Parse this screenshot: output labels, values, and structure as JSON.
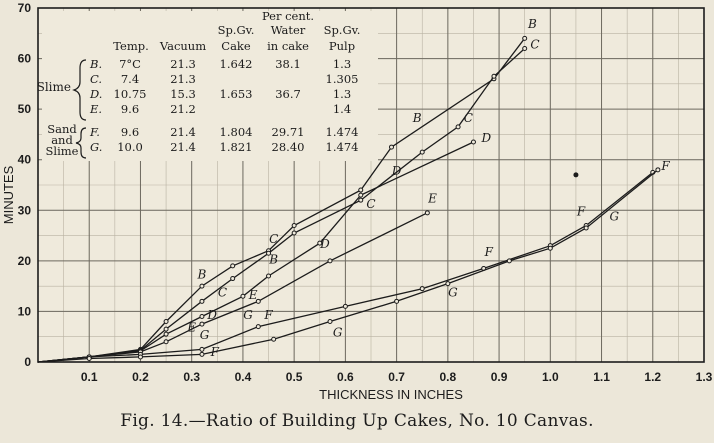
{
  "chart_data": {
    "type": "line",
    "xlabel": "THICKNESS IN INCHES",
    "ylabel": "MINUTES",
    "xlim": [
      0,
      1.3
    ],
    "ylim": [
      0,
      70
    ],
    "x_ticks": [
      "0.1",
      "0.2",
      "0.3",
      "0.4",
      "0.5",
      "0.6",
      "0.7",
      "0.8",
      "0.9",
      "1.0",
      "1.1",
      "1.2",
      "1.3"
    ],
    "x_tick_values": [
      0.1,
      0.2,
      0.3,
      0.4,
      0.5,
      0.6,
      0.7,
      0.8,
      0.9,
      1.0,
      1.1,
      1.2,
      1.3
    ],
    "y_ticks": [
      "0",
      "10",
      "20",
      "30",
      "40",
      "50",
      "60",
      "70"
    ],
    "y_tick_values": [
      0,
      10,
      20,
      30,
      40,
      50,
      60,
      70
    ],
    "grid": true,
    "legend_table": {
      "header_top": [
        "",
        "",
        "",
        "Per cent.",
        ""
      ],
      "header_mid": [
        "",
        "",
        "Sp.Gv.",
        "Water",
        "Sp.Gv."
      ],
      "header_low": [
        "Temp.",
        "Vacuum",
        "Cake",
        "in cake",
        "Pulp"
      ],
      "group_slime": "Slime",
      "group_sand": "Sand and Slime",
      "rows": [
        {
          "label": "B.",
          "temp": "7°C",
          "vacuum": "21.3",
          "cake": "1.642",
          "water": "38.1",
          "pulp": "1.3"
        },
        {
          "label": "C.",
          "temp": "7.4",
          "vacuum": "21.3",
          "cake": "",
          "water": "",
          "pulp": "1.305"
        },
        {
          "label": "D.",
          "temp": "10.75",
          "vacuum": "15.3",
          "cake": "1.653",
          "water": "36.7",
          "pulp": "1.3"
        },
        {
          "label": "E.",
          "temp": "9.6",
          "vacuum": "21.2",
          "cake": "",
          "water": "",
          "pulp": "1.4"
        },
        {
          "label": "F.",
          "temp": "9.6",
          "vacuum": "21.4",
          "cake": "1.804",
          "water": "29.71",
          "pulp": "1.474"
        },
        {
          "label": "G.",
          "temp": "10.0",
          "vacuum": "21.4",
          "cake": "1.821",
          "water": "28.40",
          "pulp": "1.474"
        }
      ]
    },
    "series": [
      {
        "name": "B",
        "color": "#1c1c1c",
        "points": [
          [
            0,
            0
          ],
          [
            0.1,
            1
          ],
          [
            0.2,
            2.5
          ],
          [
            0.25,
            8
          ],
          [
            0.32,
            15
          ],
          [
            0.38,
            19
          ],
          [
            0.45,
            22
          ],
          [
            0.5,
            27
          ],
          [
            0.63,
            34
          ],
          [
            0.69,
            42.5
          ],
          [
            0.89,
            56
          ],
          [
            0.95,
            64
          ]
        ],
        "labels": [
          {
            "text": "B",
            "at": [
              0.32,
              16.5
            ]
          },
          {
            "text": "B",
            "at": [
              0.46,
              19.5
            ]
          },
          {
            "text": "B",
            "at": [
              0.74,
              47.5
            ]
          },
          {
            "text": "B",
            "at": [
              0.965,
              66
            ]
          }
        ]
      },
      {
        "name": "C",
        "color": "#1c1c1c",
        "points": [
          [
            0,
            0
          ],
          [
            0.1,
            1
          ],
          [
            0.2,
            2.3
          ],
          [
            0.25,
            6.5
          ],
          [
            0.32,
            12
          ],
          [
            0.38,
            16.5
          ],
          [
            0.45,
            21.5
          ],
          [
            0.5,
            25.5
          ],
          [
            0.63,
            32
          ],
          [
            0.75,
            41.5
          ],
          [
            0.82,
            46.5
          ],
          [
            0.89,
            56.5
          ],
          [
            0.95,
            62
          ]
        ],
        "labels": [
          {
            "text": "C",
            "at": [
              0.46,
              23.5
            ]
          },
          {
            "text": "C",
            "at": [
              0.36,
              13
            ]
          },
          {
            "text": "C",
            "at": [
              0.65,
              30.5
            ]
          },
          {
            "text": "C",
            "at": [
              0.84,
              47.5
            ]
          },
          {
            "text": "C",
            "at": [
              0.97,
              62
            ]
          }
        ]
      },
      {
        "name": "D",
        "color": "#1c1c1c",
        "points": [
          [
            0,
            0
          ],
          [
            0.1,
            1
          ],
          [
            0.2,
            2.2
          ],
          [
            0.25,
            5.5
          ],
          [
            0.32,
            9
          ],
          [
            0.4,
            13
          ],
          [
            0.45,
            17
          ],
          [
            0.55,
            23.5
          ],
          [
            0.63,
            33
          ],
          [
            0.85,
            43.5
          ]
        ],
        "labels": [
          {
            "text": "D",
            "at": [
              0.34,
              8.5
            ]
          },
          {
            "text": "D",
            "at": [
              0.56,
              22.5
            ]
          },
          {
            "text": "D",
            "at": [
              0.7,
              37
            ]
          },
          {
            "text": "D",
            "at": [
              0.875,
              43.5
            ]
          }
        ]
      },
      {
        "name": "E",
        "color": "#1c1c1c",
        "points": [
          [
            0,
            0
          ],
          [
            0.1,
            1
          ],
          [
            0.2,
            2
          ],
          [
            0.25,
            4
          ],
          [
            0.32,
            7.5
          ],
          [
            0.43,
            12
          ],
          [
            0.57,
            20
          ],
          [
            0.76,
            29.5
          ]
        ],
        "labels": [
          {
            "text": "E",
            "at": [
              0.3,
              6
            ]
          },
          {
            "text": "E",
            "at": [
              0.42,
              12.5
            ]
          },
          {
            "text": "E",
            "at": [
              0.77,
              31.5
            ]
          }
        ]
      },
      {
        "name": "F",
        "color": "#1c1c1c",
        "points": [
          [
            0,
            0
          ],
          [
            0.1,
            1
          ],
          [
            0.2,
            1.5
          ],
          [
            0.32,
            2.5
          ],
          [
            0.43,
            7
          ],
          [
            0.6,
            11
          ],
          [
            0.75,
            14.5
          ],
          [
            0.87,
            18.5
          ],
          [
            1.0,
            23
          ],
          [
            1.07,
            27
          ],
          [
            1.2,
            37.5
          ]
        ],
        "labels": [
          {
            "text": "F",
            "at": [
              0.345,
              1.2
            ]
          },
          {
            "text": "F",
            "at": [
              0.45,
              8.5
            ]
          },
          {
            "text": "F",
            "at": [
              0.88,
              21
            ]
          },
          {
            "text": "F",
            "at": [
              1.06,
              29
            ]
          },
          {
            "text": "F",
            "at": [
              1.225,
              38
            ]
          }
        ]
      },
      {
        "name": "G",
        "color": "#1c1c1c",
        "points": [
          [
            0,
            0
          ],
          [
            0.1,
            0.7
          ],
          [
            0.2,
            1
          ],
          [
            0.32,
            1.5
          ],
          [
            0.46,
            4.5
          ],
          [
            0.57,
            8
          ],
          [
            0.7,
            12
          ],
          [
            0.8,
            15.5
          ],
          [
            0.92,
            20
          ],
          [
            1.0,
            22.5
          ],
          [
            1.07,
            26.5
          ],
          [
            1.21,
            38
          ]
        ],
        "labels": [
          {
            "text": "G",
            "at": [
              0.325,
              4.5
            ]
          },
          {
            "text": "G",
            "at": [
              0.41,
              8.5
            ]
          },
          {
            "text": "G",
            "at": [
              0.585,
              5
            ]
          },
          {
            "text": "G",
            "at": [
              0.81,
              13
            ]
          },
          {
            "text": "G",
            "at": [
              1.125,
              28
            ]
          }
        ]
      }
    ],
    "stray_marks": [
      [
        1.05,
        37
      ]
    ]
  },
  "caption": "Fig. 14.—Ratio of Building Up Cakes, No. 10 Canvas."
}
